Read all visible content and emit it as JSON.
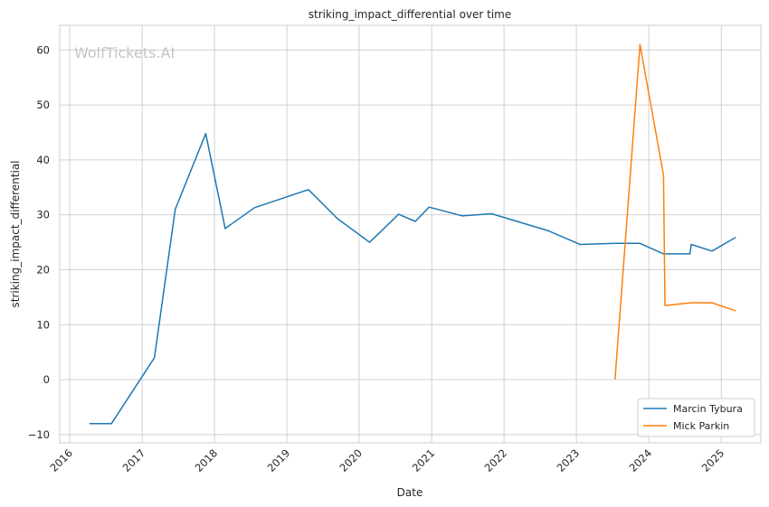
{
  "chart_data": {
    "type": "line",
    "title": "striking_impact_differential over time",
    "xlabel": "Date",
    "ylabel": "striking_impact_differential",
    "watermark": "WolfTickets.AI",
    "grid": true,
    "legend_position": "bottom-right",
    "xlim": [
      "2015-11-12",
      "2025-07-20"
    ],
    "ylim": [
      -11.5,
      64.5
    ],
    "x_ticks": [
      "2016",
      "2017",
      "2018",
      "2019",
      "2020",
      "2021",
      "2022",
      "2023",
      "2024",
      "2025"
    ],
    "y_ticks": [
      -10,
      0,
      10,
      20,
      30,
      40,
      50,
      60
    ],
    "series": [
      {
        "name": "Marcin Tybura",
        "color": "#1f77b4",
        "points": [
          [
            "2016-04-10",
            -8.0
          ],
          [
            "2016-07-30",
            -8.0
          ],
          [
            "2017-03-04",
            4.0
          ],
          [
            "2017-06-17",
            31.0
          ],
          [
            "2017-11-18",
            44.8
          ],
          [
            "2018-02-24",
            27.5
          ],
          [
            "2018-07-22",
            31.3
          ],
          [
            "2019-04-20",
            34.6
          ],
          [
            "2019-09-14",
            29.3
          ],
          [
            "2020-02-23",
            25.0
          ],
          [
            "2020-07-18",
            30.1
          ],
          [
            "2020-10-10",
            28.8
          ],
          [
            "2020-12-19",
            31.4
          ],
          [
            "2021-06-05",
            29.8
          ],
          [
            "2021-10-30",
            30.2
          ],
          [
            "2022-08-13",
            27.1
          ],
          [
            "2023-01-21",
            24.6
          ],
          [
            "2023-07-15",
            24.8
          ],
          [
            "2023-11-18",
            24.8
          ],
          [
            "2024-03-16",
            22.9
          ],
          [
            "2024-07-27",
            22.9
          ],
          [
            "2024-08-03",
            24.6
          ],
          [
            "2024-11-16",
            23.4
          ],
          [
            "2025-03-15",
            25.9
          ]
        ]
      },
      {
        "name": "Mick Parkin",
        "color": "#ff7f0e",
        "points": [
          [
            "2023-07-15",
            0.0
          ],
          [
            "2023-11-18",
            61.0
          ],
          [
            "2024-03-16",
            37.2
          ],
          [
            "2024-03-23",
            13.5
          ],
          [
            "2024-08-03",
            14.0
          ],
          [
            "2024-11-16",
            14.0
          ],
          [
            "2025-03-15",
            12.5
          ]
        ]
      }
    ]
  }
}
